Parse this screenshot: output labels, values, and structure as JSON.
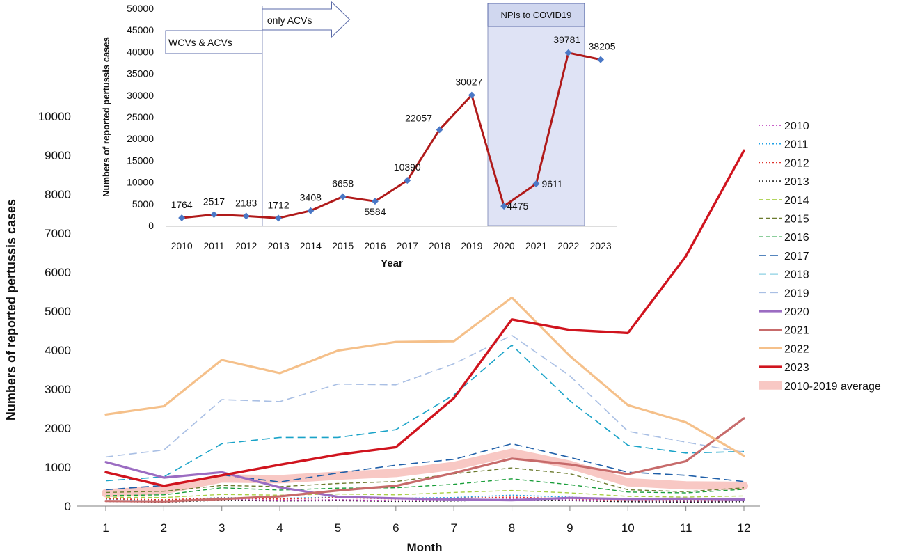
{
  "chart_data": [
    {
      "type": "line",
      "xlabel": "Month",
      "ylabel": "Numbers of reported pertussis cases",
      "x": [
        1,
        2,
        3,
        4,
        5,
        6,
        7,
        8,
        9,
        10,
        11,
        12
      ],
      "x_tick_labels": [
        "1",
        "2",
        "3",
        "4",
        "5",
        "6",
        "7",
        "8",
        "9",
        "10",
        "11",
        "12"
      ],
      "xlim": [
        0.7,
        12.3
      ],
      "ylim": [
        0,
        10000
      ],
      "y_ticks": [
        0,
        1000,
        2000,
        3000,
        4000,
        5000,
        6000,
        7000,
        8000,
        9000,
        10000
      ],
      "y_tick_labels": [
        "0",
        "1000",
        "2000",
        "3000",
        "4000",
        "5000",
        "6000",
        "7000",
        "8000",
        "9000",
        "10000"
      ],
      "grid": false,
      "legend": "right",
      "series": [
        {
          "name": "2010",
          "color": "#b52ab5",
          "style": "dotted",
          "width": 1.6,
          "values": [
            140,
            110,
            170,
            150,
            160,
            140,
            150,
            180,
            160,
            120,
            110,
            130
          ]
        },
        {
          "name": "2011",
          "color": "#1ea0e6",
          "style": "dotted",
          "width": 1.6,
          "values": [
            180,
            150,
            220,
            200,
            230,
            200,
            220,
            280,
            230,
            170,
            160,
            170
          ]
        },
        {
          "name": "2012",
          "color": "#e0302a",
          "style": "dotted",
          "width": 1.6,
          "values": [
            190,
            160,
            210,
            180,
            220,
            180,
            200,
            230,
            190,
            150,
            140,
            150
          ]
        },
        {
          "name": "2013",
          "color": "#222222",
          "style": "dotted",
          "width": 1.6,
          "values": [
            120,
            100,
            150,
            130,
            140,
            120,
            130,
            160,
            140,
            110,
            100,
            110
          ]
        },
        {
          "name": "2014",
          "color": "#a8cf45",
          "style": "dash-sm",
          "width": 1.4,
          "values": [
            230,
            220,
            300,
            280,
            310,
            290,
            350,
            400,
            340,
            250,
            230,
            260
          ]
        },
        {
          "name": "2015",
          "color": "#6b7a2e",
          "style": "dash-sm",
          "width": 1.4,
          "values": [
            350,
            380,
            530,
            500,
            580,
            630,
            830,
            980,
            830,
            420,
            370,
            470
          ]
        },
        {
          "name": "2016",
          "color": "#1a9e3a",
          "style": "dash-sm",
          "width": 1.4,
          "values": [
            270,
            290,
            470,
            410,
            460,
            470,
            560,
            700,
            550,
            360,
            340,
            430
          ]
        },
        {
          "name": "2017",
          "color": "#1f5fa8",
          "style": "dash-lg",
          "width": 1.6,
          "values": [
            420,
            530,
            800,
            620,
            850,
            1050,
            1200,
            1600,
            1250,
            870,
            790,
            630
          ]
        },
        {
          "name": "2018",
          "color": "#1aa3c8",
          "style": "dash-lg",
          "width": 1.6,
          "values": [
            650,
            750,
            1600,
            1760,
            1760,
            1960,
            2850,
            4130,
            2700,
            1560,
            1360,
            1400
          ]
        },
        {
          "name": "2019",
          "color": "#a9bfe4",
          "style": "dash-lg",
          "width": 1.6,
          "values": [
            1260,
            1440,
            2730,
            2680,
            3130,
            3110,
            3650,
            4380,
            3340,
            1920,
            1640,
            1380
          ]
        },
        {
          "name": "2020",
          "color": "#9b6cc2",
          "style": "solid",
          "width": 3.2,
          "values": [
            1130,
            730,
            870,
            480,
            240,
            200,
            170,
            150,
            210,
            180,
            190,
            170
          ]
        },
        {
          "name": "2021",
          "color": "#c76b6b",
          "style": "solid",
          "width": 3.2,
          "values": [
            130,
            120,
            180,
            250,
            400,
            520,
            850,
            1220,
            1070,
            820,
            1150,
            2250
          ]
        },
        {
          "name": "2022",
          "color": "#f5c08a",
          "style": "solid",
          "width": 3.2,
          "values": [
            2350,
            2560,
            3750,
            3410,
            3990,
            4210,
            4230,
            5350,
            3850,
            2590,
            2150,
            1290
          ]
        },
        {
          "name": "2023",
          "color": "#d0141e",
          "style": "solid",
          "width": 3.4,
          "values": [
            870,
            520,
            790,
            1060,
            1320,
            1510,
            2770,
            4790,
            4520,
            4440,
            6410,
            9120
          ]
        },
        {
          "name": "2010-2019 average",
          "color": "#f8c8c4",
          "style": "solid",
          "width": 12,
          "values": [
            330,
            410,
            710,
            690,
            780,
            850,
            1030,
            1370,
            1060,
            610,
            530,
            520
          ]
        }
      ]
    },
    {
      "type": "line",
      "xlabel": "Year",
      "ylabel": "Numbers of reported pertussis cases",
      "x": [
        "2010",
        "2011",
        "2012",
        "2013",
        "2014",
        "2015",
        "2016",
        "2017",
        "2018",
        "2019",
        "2020",
        "2021",
        "2022",
        "2023"
      ],
      "values": [
        1764,
        2517,
        2183,
        1712,
        3408,
        6658,
        5584,
        10390,
        22057,
        30027,
        4475,
        9611,
        39781,
        38205
      ],
      "data_labels": [
        "1764",
        "2517",
        "2183",
        "1712",
        "3408",
        "6658",
        "5584",
        "10390",
        "22057",
        "30027",
        "4475",
        "9611",
        "39781",
        "38205"
      ],
      "ylim": [
        0,
        50000
      ],
      "y_ticks": [
        0,
        5000,
        10000,
        15000,
        20000,
        25000,
        30000,
        35000,
        40000,
        45000,
        50000
      ],
      "y_tick_labels": [
        "0",
        "5000",
        "10000",
        "15000",
        "20000",
        "25000",
        "30000",
        "35000",
        "40000",
        "45000",
        "50000"
      ],
      "line_color": "#b01a1a",
      "marker_color": "#4a78c6",
      "grid": false,
      "annotations": [
        {
          "text": "WCVs  &  ACVs",
          "from_year": "2010",
          "to_year": "2012"
        },
        {
          "text": "only ACVs",
          "from_year": "2013",
          "to_year": "2014"
        },
        {
          "text": "NPIs to COVID19",
          "from_year": "2020",
          "to_year": "2022",
          "fill": "#dfe3f5"
        }
      ]
    }
  ]
}
